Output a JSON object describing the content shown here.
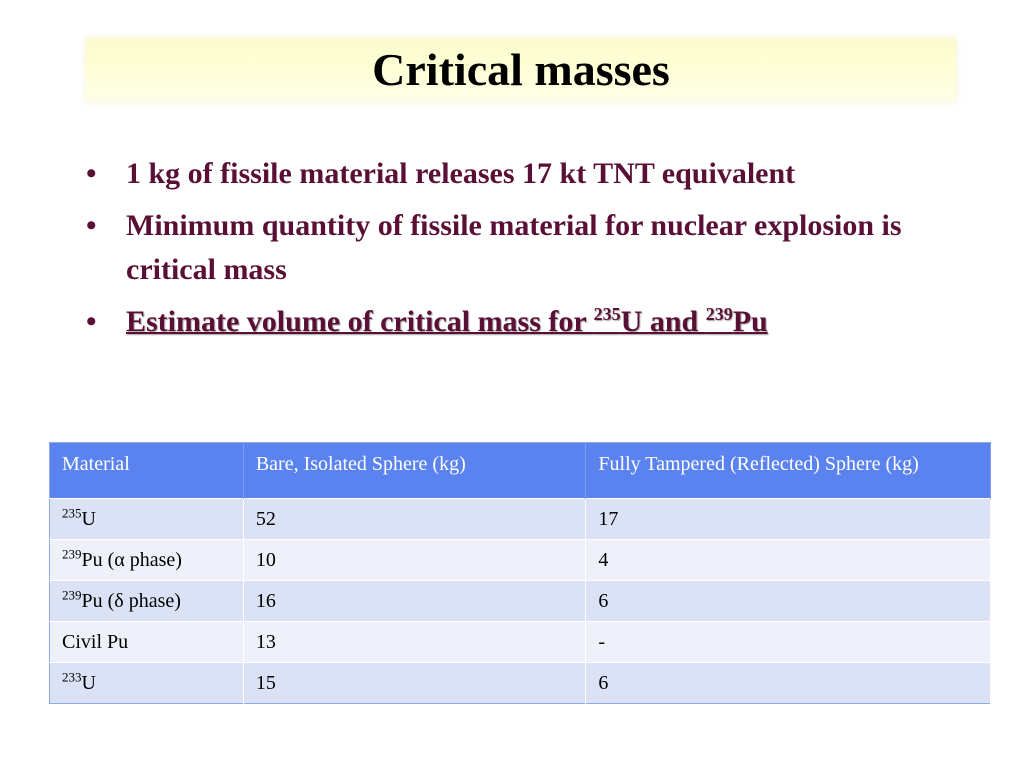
{
  "slide": {
    "title": "Critical masses"
  },
  "bullets": [
    {
      "text": "1 kg of fissile material releases 17 kt TNT equivalent"
    },
    {
      "text": "Minimum quantity of fissile material for nuclear explosion is critical mass"
    },
    {
      "pre": "Estimate volume of critical mass for ",
      "sup1": "235",
      "mid": "U and ",
      "sup2": "239",
      "post": "Pu"
    }
  ],
  "bullet_symbol": "•",
  "table": {
    "headers": [
      "Material",
      "Bare, Isolated Sphere (kg)",
      "Fully Tampered (Reflected) Sphere (kg)"
    ],
    "rows": [
      {
        "iso": "235",
        "material": "U",
        "bare": "52",
        "tampered": "17"
      },
      {
        "iso": "239",
        "material": "Pu (α phase)",
        "bare": "10",
        "tampered": "4"
      },
      {
        "iso": "239",
        "material": "Pu (δ phase)",
        "bare": "16",
        "tampered": "6"
      },
      {
        "iso": "",
        "material": "Civil Pu",
        "bare": "13",
        "tampered": "-"
      },
      {
        "iso": "233",
        "material": "U",
        "bare": "15",
        "tampered": "6"
      }
    ]
  }
}
